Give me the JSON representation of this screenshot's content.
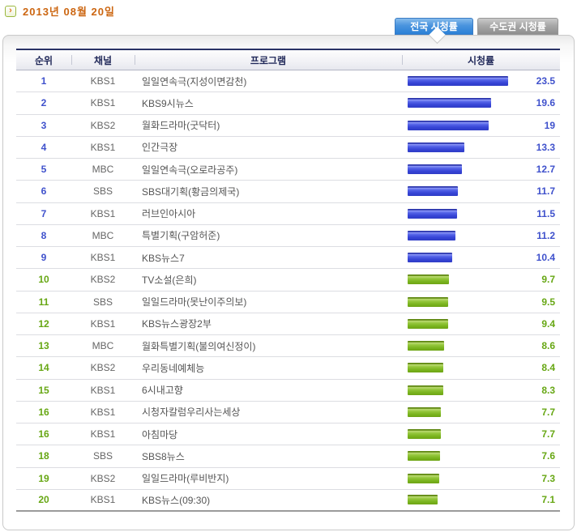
{
  "page_title": "2013년 08월 20일",
  "title_icon_glyph": "›",
  "tabs": [
    {
      "label": "전국 시청률",
      "active": true
    },
    {
      "label": "수도권 시청률",
      "active": false
    }
  ],
  "table": {
    "columns": [
      "순위",
      "채널",
      "프로그램",
      "시청률"
    ],
    "rows": [
      {
        "rank": "1",
        "channel": "KBS1",
        "program": "일일연속극(지성이면감천)",
        "rating": "23.5",
        "color": "blue"
      },
      {
        "rank": "2",
        "channel": "KBS1",
        "program": "KBS9시뉴스",
        "rating": "19.6",
        "color": "blue"
      },
      {
        "rank": "3",
        "channel": "KBS2",
        "program": "월화드라마(굿닥터)",
        "rating": "19",
        "color": "blue"
      },
      {
        "rank": "4",
        "channel": "KBS1",
        "program": "인간극장",
        "rating": "13.3",
        "color": "blue"
      },
      {
        "rank": "5",
        "channel": "MBC",
        "program": "일일연속극(오로라공주)",
        "rating": "12.7",
        "color": "blue"
      },
      {
        "rank": "6",
        "channel": "SBS",
        "program": "SBS대기획(황금의제국)",
        "rating": "11.7",
        "color": "blue"
      },
      {
        "rank": "7",
        "channel": "KBS1",
        "program": "러브인아시아",
        "rating": "11.5",
        "color": "blue"
      },
      {
        "rank": "8",
        "channel": "MBC",
        "program": "특별기획(구암허준)",
        "rating": "11.2",
        "color": "blue"
      },
      {
        "rank": "9",
        "channel": "KBS1",
        "program": "KBS뉴스7",
        "rating": "10.4",
        "color": "blue"
      },
      {
        "rank": "10",
        "channel": "KBS2",
        "program": "TV소설(은희)",
        "rating": "9.7",
        "color": "green"
      },
      {
        "rank": "11",
        "channel": "SBS",
        "program": "일일드라마(못난이주의보)",
        "rating": "9.5",
        "color": "green"
      },
      {
        "rank": "12",
        "channel": "KBS1",
        "program": "KBS뉴스광장2부",
        "rating": "9.4",
        "color": "green"
      },
      {
        "rank": "13",
        "channel": "MBC",
        "program": "월화특별기획(불의여신정이)",
        "rating": "8.6",
        "color": "green"
      },
      {
        "rank": "14",
        "channel": "KBS2",
        "program": "우리동네예체능",
        "rating": "8.4",
        "color": "green"
      },
      {
        "rank": "15",
        "channel": "KBS1",
        "program": "6시내고향",
        "rating": "8.3",
        "color": "green"
      },
      {
        "rank": "16",
        "channel": "KBS1",
        "program": "시청자칼럼우리사는세상",
        "rating": "7.7",
        "color": "green"
      },
      {
        "rank": "16",
        "channel": "KBS1",
        "program": "아침마당",
        "rating": "7.7",
        "color": "green"
      },
      {
        "rank": "18",
        "channel": "SBS",
        "program": "SBS8뉴스",
        "rating": "7.6",
        "color": "green"
      },
      {
        "rank": "19",
        "channel": "KBS2",
        "program": "일일드라마(루비반지)",
        "rating": "7.3",
        "color": "green"
      },
      {
        "rank": "20",
        "channel": "KBS1",
        "program": "KBS뉴스(09:30)",
        "rating": "7.1",
        "color": "green"
      }
    ]
  },
  "colors": {
    "title_text": "#cc6611",
    "active_tab": "#2a80d6",
    "inactive_tab": "#8e8e8e",
    "blue_bar": "#3644d6",
    "green_bar": "#7ab41e",
    "blue_text": "#3f51cc",
    "green_text": "#67a714"
  }
}
